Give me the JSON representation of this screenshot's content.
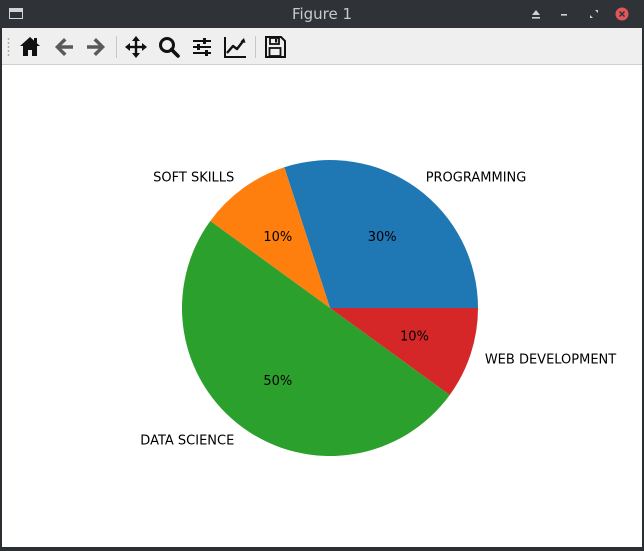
{
  "window": {
    "title": "Figure 1"
  },
  "toolbar": {
    "tools": [
      {
        "name": "home-icon"
      },
      {
        "name": "back-arrow-icon"
      },
      {
        "name": "forward-arrow-icon"
      },
      {
        "name": "pan-move-icon"
      },
      {
        "name": "zoom-magnifier-icon"
      },
      {
        "name": "configure-subplots-icon"
      },
      {
        "name": "edit-axis-icon"
      },
      {
        "name": "save-figure-icon"
      }
    ]
  },
  "colors": {
    "programming": "#1f77b4",
    "soft_skills": "#ff7f0e",
    "data_science": "#2ca02c",
    "web_development": "#d62728"
  },
  "chart_data": {
    "type": "pie",
    "title": "",
    "slices": [
      {
        "label": "PROGRAMMING",
        "value": 30,
        "pct_label": "30%",
        "color": "#1f77b4"
      },
      {
        "label": "SOFT SKILLS",
        "value": 10,
        "pct_label": "10%",
        "color": "#ff7f0e"
      },
      {
        "label": "DATA SCIENCE",
        "value": 50,
        "pct_label": "50%",
        "color": "#2ca02c"
      },
      {
        "label": "WEB DEVELOPMENT",
        "value": 10,
        "pct_label": "10%",
        "color": "#d62728"
      }
    ],
    "start_angle_deg": 0,
    "direction": "counterclockwise",
    "legend": "none"
  }
}
